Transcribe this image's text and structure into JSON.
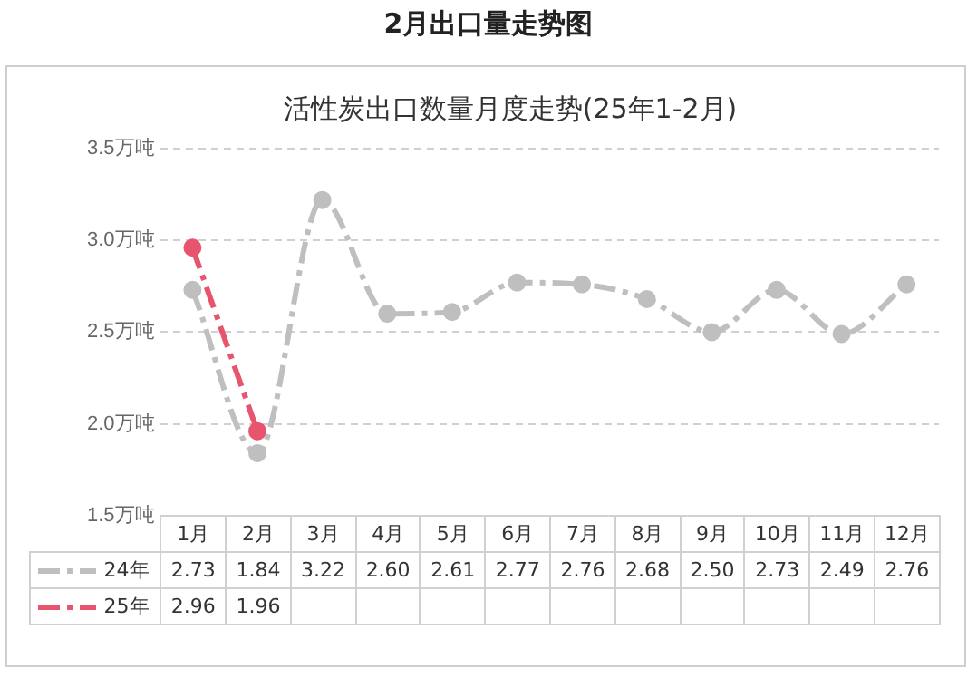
{
  "chart_data": {
    "type": "line",
    "title": "2月出口量走势图",
    "subtitle": "活性炭出口数量月度走势(25年1-2月)",
    "categories": [
      "1月",
      "2月",
      "3月",
      "4月",
      "5月",
      "6月",
      "7月",
      "8月",
      "9月",
      "10月",
      "11月",
      "12月"
    ],
    "ylim": [
      1.5,
      3.5
    ],
    "yticks": [
      {
        "value": 1.5,
        "label": "1.5万吨"
      },
      {
        "value": 2.0,
        "label": "2.0万吨"
      },
      {
        "value": 2.5,
        "label": "2.5万吨"
      },
      {
        "value": 3.0,
        "label": "3.0万吨"
      },
      {
        "value": 3.5,
        "label": "3.5万吨"
      }
    ],
    "grid": "y",
    "legend": "bottom",
    "marker": "circle",
    "line_style": "dashed",
    "series": [
      {
        "name": "24年",
        "color": "#bfbfbf",
        "values": [
          2.73,
          1.84,
          3.22,
          2.6,
          2.61,
          2.77,
          2.76,
          2.68,
          2.5,
          2.73,
          2.49,
          2.76
        ],
        "value_labels": [
          "2.73",
          "1.84",
          "3.22",
          "2.60",
          "2.61",
          "2.77",
          "2.76",
          "2.68",
          "2.50",
          "2.73",
          "2.49",
          "2.76"
        ]
      },
      {
        "name": "25年",
        "color": "#e8546e",
        "values": [
          2.96,
          1.96,
          null,
          null,
          null,
          null,
          null,
          null,
          null,
          null,
          null,
          null
        ],
        "value_labels": [
          "2.96",
          "1.96",
          null,
          null,
          null,
          null,
          null,
          null,
          null,
          null,
          null,
          null
        ]
      }
    ]
  }
}
